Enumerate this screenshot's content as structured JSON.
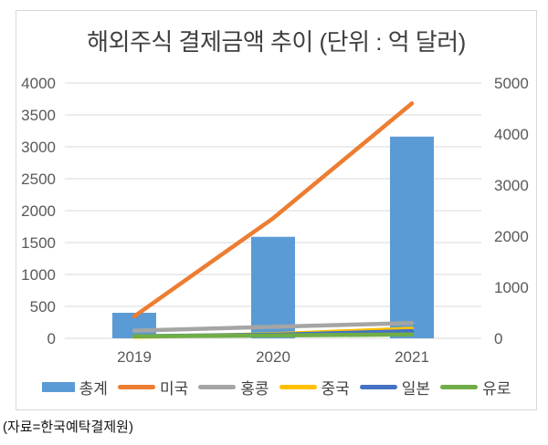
{
  "chart_data": {
    "type": "combo",
    "title": "해외주식 결제금액 추이 (단위 : 억 달러)",
    "categories": [
      "2019",
      "2020",
      "2021"
    ],
    "series": [
      {
        "id": "total",
        "name": "총계",
        "type": "bar",
        "axis": "left",
        "color": "#5b9bd5",
        "values": [
          400,
          1590,
          3160
        ]
      },
      {
        "id": "usa",
        "name": "미국",
        "type": "line",
        "axis": "right",
        "color": "#ed7d31",
        "values": [
          430,
          2350,
          4600
        ]
      },
      {
        "id": "hongkong",
        "name": "홍콩",
        "type": "line",
        "axis": "right",
        "color": "#a5a5a5",
        "values": [
          150,
          225,
          300
        ]
      },
      {
        "id": "china",
        "name": "중국",
        "type": "line",
        "axis": "right",
        "color": "#ffc000",
        "values": [
          30,
          80,
          190
        ]
      },
      {
        "id": "japan",
        "name": "일본",
        "type": "line",
        "axis": "right",
        "color": "#4472c4",
        "values": [
          40,
          70,
          140
        ]
      },
      {
        "id": "euro",
        "name": "유로",
        "type": "line",
        "axis": "right",
        "color": "#70ad47",
        "values": [
          40,
          55,
          75
        ]
      }
    ],
    "left_axis": {
      "min": 0,
      "max": 4000,
      "step": 500,
      "ticks": [
        0,
        500,
        1000,
        1500,
        2000,
        2500,
        3000,
        3500,
        4000
      ]
    },
    "right_axis": {
      "min": 0,
      "max": 5000,
      "step": 1000,
      "ticks": [
        0,
        1000,
        2000,
        3000,
        4000,
        5000
      ]
    },
    "grid": true,
    "legend_position": "bottom"
  },
  "caption": "(자료=한국예탁결제원)",
  "colors": {
    "grid": "#d9d9d9",
    "axis_text": "#595959",
    "title_text": "#404040",
    "box_border": "#d8d8d8",
    "background": "#ffffff"
  }
}
